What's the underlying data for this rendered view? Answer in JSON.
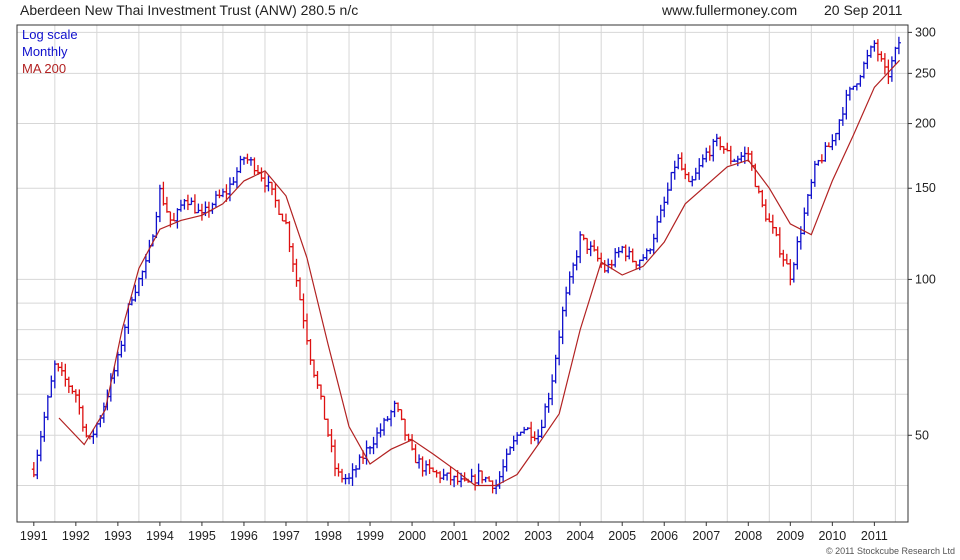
{
  "header": {
    "title": "Aberdeen New Thai Investment Trust (ANW) 280.5 n/c",
    "site": "www.fullermoney.com",
    "date": "20 Sep 2011"
  },
  "legend": {
    "scale": "Log scale",
    "period": "Monthly",
    "ma": "MA 200"
  },
  "footer": "© 2011 Stockcube Research Ltd",
  "colors": {
    "up": "#1010cc",
    "down": "#dd1111",
    "ma": "#b22222",
    "grid": "#d7d7d7",
    "frame": "#333333"
  },
  "chart_data": {
    "type": "line",
    "yscale": "log",
    "ylim": [
      34,
      310
    ],
    "xlim": [
      1990.6,
      2011.8
    ],
    "y_ticks": [
      50,
      100,
      150,
      200,
      250,
      300
    ],
    "x_ticks": [
      "1991",
      "1992",
      "1993",
      "1994",
      "1995",
      "1996",
      "1997",
      "1998",
      "1999",
      "2000",
      "2001",
      "2002",
      "2003",
      "2004",
      "2005",
      "2006",
      "2007",
      "2008",
      "2009",
      "2010",
      "2011"
    ],
    "series": [
      {
        "name": "Monthly",
        "x": [
          1991.0,
          1991.5,
          1992.0,
          1992.3,
          1992.6,
          1993.0,
          1993.3,
          1993.7,
          1994.0,
          1994.3,
          1994.6,
          1995.0,
          1995.3,
          1995.6,
          1996.0,
          1996.3,
          1996.6,
          1997.0,
          1997.3,
          1997.6,
          1997.9,
          1998.2,
          1998.5,
          1998.8,
          1999.0,
          1999.3,
          1999.6,
          2000.0,
          2000.3,
          2000.6,
          2001.0,
          2001.3,
          2001.6,
          2002.0,
          2002.3,
          2002.6,
          2003.0,
          2003.3,
          2003.6,
          2004.0,
          2004.3,
          2004.6,
          2005.0,
          2005.3,
          2005.6,
          2006.0,
          2006.3,
          2006.6,
          2007.0,
          2007.3,
          2007.6,
          2008.0,
          2008.3,
          2008.6,
          2009.0,
          2009.3,
          2009.6,
          2010.0,
          2010.3,
          2010.6,
          2011.0,
          2011.3,
          2011.6
        ],
        "values": [
          43,
          68,
          60,
          48,
          55,
          70,
          92,
          108,
          148,
          127,
          145,
          132,
          142,
          148,
          172,
          165,
          150,
          128,
          95,
          70,
          55,
          42,
          41,
          45,
          48,
          52,
          57,
          46,
          43,
          42,
          41,
          40,
          42,
          40,
          46,
          52,
          50,
          62,
          88,
          120,
          113,
          104,
          115,
          108,
          112,
          140,
          172,
          150,
          175,
          185,
          170,
          175,
          140,
          123,
          102,
          130,
          165,
          185,
          220,
          245,
          285,
          245,
          290
        ]
      },
      {
        "name": "MA 200",
        "x": [
          1991.6,
          1992.2,
          1992.7,
          1993.1,
          1993.5,
          1994.0,
          1994.5,
          1995.0,
          1995.5,
          1996.0,
          1996.5,
          1997.0,
          1997.5,
          1998.0,
          1998.5,
          1999.0,
          1999.5,
          2000.0,
          2000.5,
          2001.0,
          2001.5,
          2002.0,
          2002.5,
          2003.0,
          2003.5,
          2004.0,
          2004.5,
          2005.0,
          2005.5,
          2006.0,
          2006.5,
          2007.0,
          2007.5,
          2008.0,
          2008.5,
          2009.0,
          2009.5,
          2010.0,
          2010.5,
          2011.0,
          2011.6
        ],
        "values": [
          54,
          48,
          56,
          80,
          105,
          125,
          130,
          133,
          140,
          155,
          162,
          145,
          110,
          75,
          52,
          44,
          47,
          49,
          46,
          43,
          40,
          40,
          42,
          48,
          55,
          80,
          108,
          102,
          106,
          118,
          140,
          152,
          165,
          170,
          150,
          128,
          122,
          155,
          190,
          235,
          265
        ]
      }
    ]
  }
}
